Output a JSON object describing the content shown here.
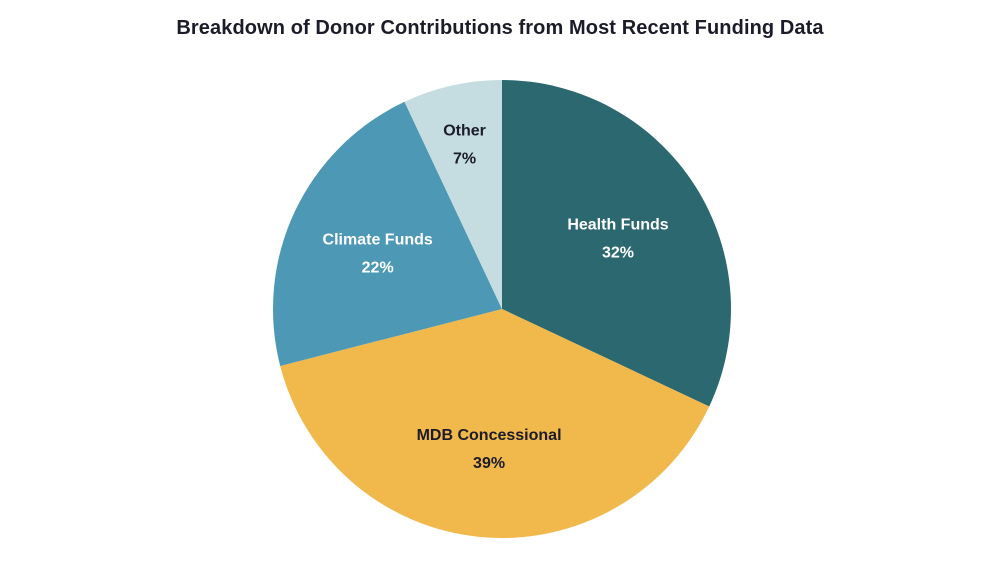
{
  "chart_data": {
    "type": "pie",
    "title": "Breakdown of Donor Contributions from Most Recent Funding Data",
    "slices": [
      {
        "label": "Health Funds",
        "value": 32,
        "value_label": "32%",
        "color": "#2c6870",
        "text_color": "#ffffff"
      },
      {
        "label": "MDB Concessional",
        "value": 39,
        "value_label": "39%",
        "color": "#f1b84c",
        "text_color": "#1b1b2a"
      },
      {
        "label": "Climate Funds",
        "value": 22,
        "value_label": "22%",
        "color": "#4d98b4",
        "text_color": "#ffffff"
      },
      {
        "label": "Other",
        "value": 7,
        "value_label": "7%",
        "color": "#c5dde1",
        "text_color": "#1b1b2a"
      }
    ],
    "start": "12 o'clock",
    "direction": "clockwise",
    "legend": "none"
  }
}
